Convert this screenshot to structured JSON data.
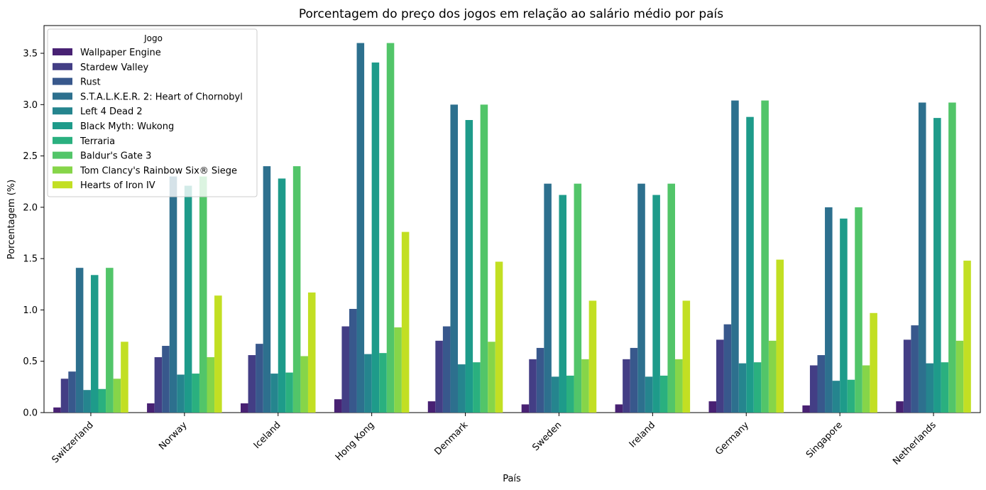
{
  "chart_data": {
    "type": "bar",
    "title": "Porcentagem do preço dos jogos em relação ao salário médio por país",
    "xlabel": "País",
    "ylabel": "Porcentagem (%)",
    "ylim": [
      0,
      3.77
    ],
    "yticks": [
      0.0,
      0.5,
      1.0,
      1.5,
      2.0,
      2.5,
      3.0,
      3.5
    ],
    "ytick_labels": [
      "0.0",
      "0.5",
      "1.0",
      "1.5",
      "2.0",
      "2.5",
      "3.0",
      "3.5"
    ],
    "grid": false,
    "legend": {
      "title": "Jogo",
      "position": "top-left"
    },
    "categories": [
      "Switzerland",
      "Norway",
      "Iceland",
      "Hong Kong",
      "Denmark",
      "Sweden",
      "Ireland",
      "Germany",
      "Singapore",
      "Netherlands"
    ],
    "series": [
      {
        "name": "Wallpaper Engine",
        "color": "#482173",
        "values": [
          0.05,
          0.09,
          0.09,
          0.13,
          0.11,
          0.08,
          0.08,
          0.11,
          0.07,
          0.11
        ]
      },
      {
        "name": "Stardew Valley",
        "color": "#433e85",
        "values": [
          0.33,
          0.54,
          0.56,
          0.84,
          0.7,
          0.52,
          0.52,
          0.71,
          0.46,
          0.71
        ]
      },
      {
        "name": "Rust",
        "color": "#38588c",
        "values": [
          0.4,
          0.65,
          0.67,
          1.01,
          0.84,
          0.63,
          0.63,
          0.86,
          0.56,
          0.85
        ]
      },
      {
        "name": "S.T.A.L.K.E.R. 2: Heart of Chornobyl",
        "color": "#2d708e",
        "values": [
          1.41,
          2.3,
          2.4,
          3.6,
          3.0,
          2.23,
          2.23,
          3.04,
          2.0,
          3.02
        ]
      },
      {
        "name": "Left 4 Dead 2",
        "color": "#25858e",
        "values": [
          0.22,
          0.37,
          0.38,
          0.57,
          0.47,
          0.35,
          0.35,
          0.48,
          0.31,
          0.48
        ]
      },
      {
        "name": "Black Myth: Wukong",
        "color": "#1e9b8a",
        "values": [
          1.34,
          2.21,
          2.28,
          3.41,
          2.85,
          2.12,
          2.12,
          2.88,
          1.89,
          2.87
        ]
      },
      {
        "name": "Terraria",
        "color": "#2ab07f",
        "values": [
          0.23,
          0.38,
          0.39,
          0.58,
          0.49,
          0.36,
          0.36,
          0.49,
          0.32,
          0.49
        ]
      },
      {
        "name": "Baldur's Gate 3",
        "color": "#52c569",
        "values": [
          1.41,
          2.3,
          2.4,
          3.6,
          3.0,
          2.23,
          2.23,
          3.04,
          2.0,
          3.02
        ]
      },
      {
        "name": "Tom Clancy's Rainbow Six® Siege",
        "color": "#86d549",
        "values": [
          0.33,
          0.54,
          0.55,
          0.83,
          0.69,
          0.52,
          0.52,
          0.7,
          0.46,
          0.7
        ]
      },
      {
        "name": "Hearts of Iron IV",
        "color": "#c2df23",
        "values": [
          0.69,
          1.14,
          1.17,
          1.76,
          1.47,
          1.09,
          1.09,
          1.49,
          0.97,
          1.48
        ]
      }
    ]
  }
}
